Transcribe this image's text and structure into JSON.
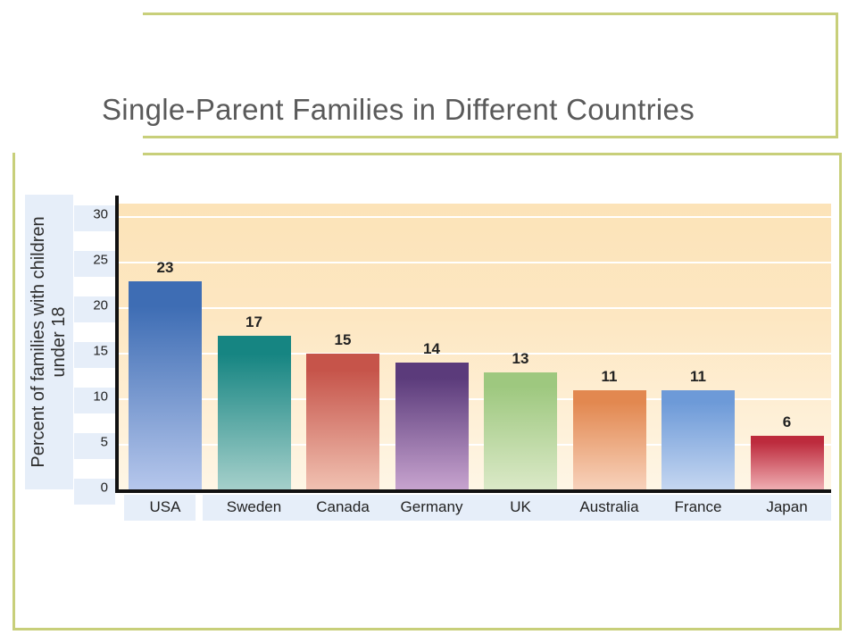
{
  "chart_data": {
    "type": "bar",
    "title": "Single-Parent Families in Different Countries",
    "ylabel": "Percent of families with children under 18",
    "xlabel": "",
    "categories": [
      "USA",
      "Sweden",
      "Canada",
      "Germany",
      "UK",
      "Australia",
      "France",
      "Japan"
    ],
    "values": [
      23,
      17,
      15,
      14,
      13,
      11,
      11,
      6
    ],
    "data_labels": [
      "23",
      "17",
      "15",
      "14",
      "13",
      "11",
      "11",
      "6"
    ],
    "yticks": [
      "0",
      "5",
      "10",
      "15",
      "20",
      "25",
      "30"
    ],
    "ylim": [
      0,
      31.5
    ],
    "grid": true,
    "bar_colors": [
      {
        "top": "#3e6db4",
        "bottom": "#b6c7ec"
      },
      {
        "top": "#168582",
        "bottom": "#a6d0cb"
      },
      {
        "top": "#c6544a",
        "bottom": "#f1c2b2"
      },
      {
        "top": "#5b3b7b",
        "bottom": "#c8a4cf"
      },
      {
        "top": "#9ec87f",
        "bottom": "#dbe9c8"
      },
      {
        "top": "#e28850",
        "bottom": "#f8d3bd"
      },
      {
        "top": "#6d9ad8",
        "bottom": "#c6d7f1"
      },
      {
        "top": "#bd2b3d",
        "bottom": "#f0b0b4"
      }
    ]
  },
  "colors": {
    "frame": "#c8cf7a",
    "title": "#5a5a5a",
    "label_band": "#e6eef9"
  }
}
